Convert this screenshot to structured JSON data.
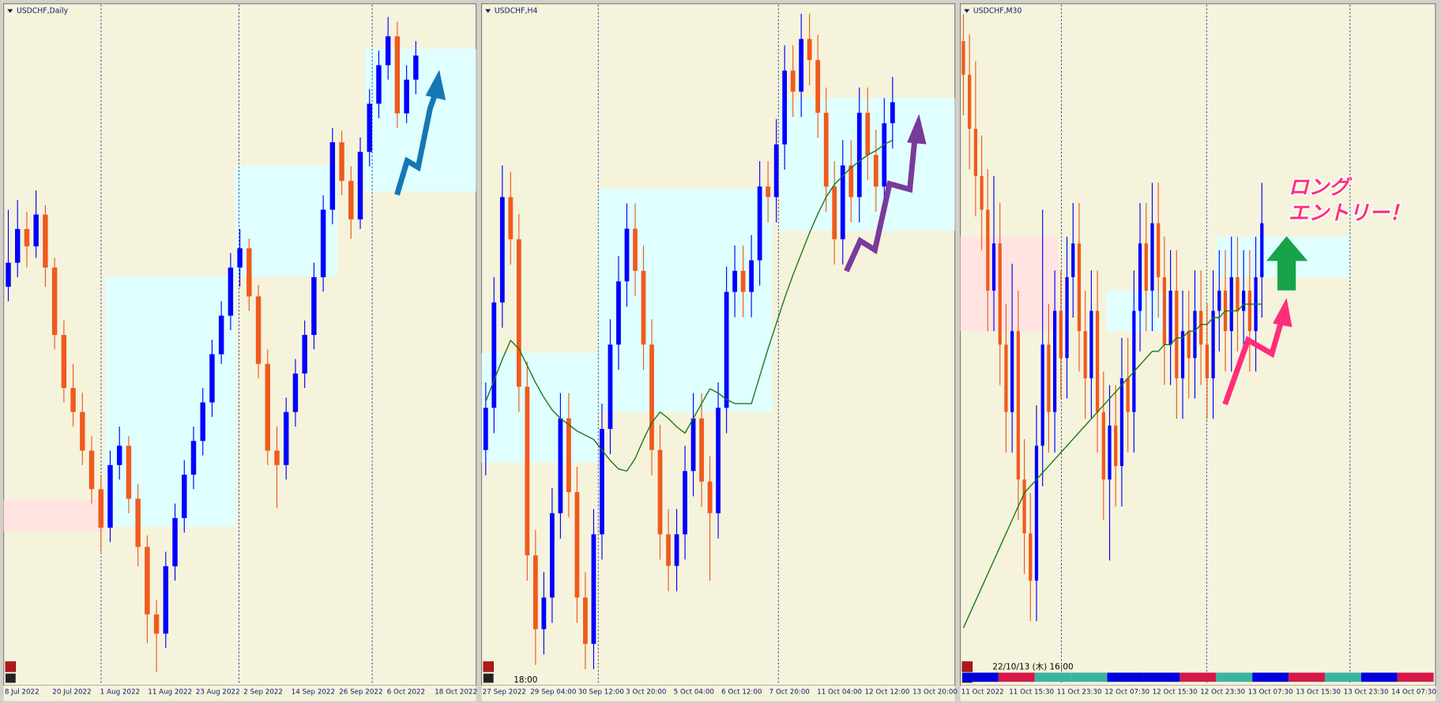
{
  "chart_data": [
    {
      "type": "candlestick",
      "title": "USDCHF,Daily",
      "ylim": [
        0.936,
        1.006
      ],
      "bull_color": "#0000ff",
      "bear_color": "#f05a1e",
      "x_labels": [
        "8 Jul 2022",
        "20 Jul 2022",
        "1 Aug 2022",
        "11 Aug 2022",
        "23 Aug 2022",
        "2 Sep 2022",
        "14 Sep 2022",
        "26 Sep 2022",
        "6 Oct 2022",
        "18 Oct 2022"
      ],
      "ohlc": [
        [
          0.977,
          0.985,
          0.9755,
          0.9795
        ],
        [
          0.9795,
          0.986,
          0.978,
          0.983
        ],
        [
          0.983,
          0.9848,
          0.979,
          0.9812
        ],
        [
          0.9812,
          0.987,
          0.98,
          0.9845
        ],
        [
          0.9845,
          0.9855,
          0.977,
          0.979
        ],
        [
          0.979,
          0.98,
          0.9705,
          0.972
        ],
        [
          0.972,
          0.9735,
          0.965,
          0.9665
        ],
        [
          0.9665,
          0.969,
          0.9625,
          0.964
        ],
        [
          0.964,
          0.966,
          0.9585,
          0.96
        ],
        [
          0.96,
          0.9615,
          0.9545,
          0.956
        ],
        [
          0.956,
          0.9575,
          0.9495,
          0.952
        ],
        [
          0.952,
          0.96,
          0.9505,
          0.9585
        ],
        [
          0.9585,
          0.9625,
          0.957,
          0.9605
        ],
        [
          0.9605,
          0.9615,
          0.9535,
          0.955
        ],
        [
          0.955,
          0.9565,
          0.948,
          0.95
        ],
        [
          0.95,
          0.9512,
          0.94,
          0.943
        ],
        [
          0.943,
          0.9445,
          0.937,
          0.941
        ],
        [
          0.941,
          0.9495,
          0.9395,
          0.948
        ],
        [
          0.948,
          0.9545,
          0.9465,
          0.953
        ],
        [
          0.953,
          0.959,
          0.9515,
          0.9575
        ],
        [
          0.9575,
          0.9625,
          0.956,
          0.961
        ],
        [
          0.961,
          0.9665,
          0.9595,
          0.965
        ],
        [
          0.965,
          0.9715,
          0.9635,
          0.97
        ],
        [
          0.97,
          0.9755,
          0.969,
          0.974
        ],
        [
          0.974,
          0.9805,
          0.9725,
          0.979
        ],
        [
          0.979,
          0.983,
          0.977,
          0.981
        ],
        [
          0.981,
          0.982,
          0.9745,
          0.976
        ],
        [
          0.976,
          0.9772,
          0.9675,
          0.969
        ],
        [
          0.969,
          0.9705,
          0.9585,
          0.96
        ],
        [
          0.96,
          0.9625,
          0.954,
          0.9585
        ],
        [
          0.9585,
          0.9655,
          0.957,
          0.964
        ],
        [
          0.964,
          0.9695,
          0.9625,
          0.968
        ],
        [
          0.968,
          0.9735,
          0.9665,
          0.972
        ],
        [
          0.972,
          0.9795,
          0.9705,
          0.978
        ],
        [
          0.978,
          0.9865,
          0.9765,
          0.985
        ],
        [
          0.985,
          0.9935,
          0.9835,
          0.992
        ],
        [
          0.992,
          0.9932,
          0.9865,
          0.988
        ],
        [
          0.988,
          0.9895,
          0.982,
          0.984
        ],
        [
          0.984,
          0.9925,
          0.983,
          0.991
        ],
        [
          0.991,
          0.9975,
          0.9895,
          0.996
        ],
        [
          0.996,
          1.0015,
          0.9945,
          1.0
        ],
        [
          1.0,
          1.005,
          0.9985,
          1.003
        ],
        [
          1.003,
          1.0045,
          0.9935,
          0.995
        ],
        [
          0.995,
          1.0,
          0.994,
          0.9985
        ],
        [
          0.9985,
          1.0025,
          0.997,
          1.001
        ]
      ],
      "zones": [
        {
          "from": 0,
          "to": 11,
          "top": 0.9549,
          "bottom": 0.9516,
          "color": "#ffe4e1"
        },
        {
          "from": 11,
          "to": 25,
          "top": 0.9781,
          "bottom": 0.9521,
          "color": "#e0ffff"
        },
        {
          "from": 25,
          "to": 36,
          "top": 0.9896,
          "bottom": 0.9781,
          "color": "#e0ffff"
        },
        {
          "from": 39,
          "to": 51,
          "top": 1.0017,
          "bottom": 0.9869,
          "color": "#e0ffff"
        }
      ]
    },
    {
      "type": "candlestick",
      "title": "USDCHF,H4",
      "time_label": "18:00",
      "ylim": [
        0.972,
        1.004
      ],
      "bull_color": "#0000ff",
      "bear_color": "#f05a1e",
      "ma_color": "#1a7a1a",
      "x_labels": [
        "27 Sep 2022",
        "29 Sep 04:00",
        "30 Sep 12:00",
        "3 Oct 20:00",
        "5 Oct 04:00",
        "6 Oct 12:00",
        "7 Oct 20:00",
        "11 Oct 04:00",
        "12 Oct 12:00",
        "13 Oct 20:00"
      ],
      "ohlc": [
        [
          0.983,
          0.9862,
          0.9818,
          0.985
        ],
        [
          0.985,
          0.9912,
          0.9838,
          0.99
        ],
        [
          0.99,
          0.9965,
          0.9888,
          0.995
        ],
        [
          0.995,
          0.9962,
          0.9918,
          0.993
        ],
        [
          0.993,
          0.9942,
          0.9848,
          0.986
        ],
        [
          0.986,
          0.9872,
          0.9768,
          0.978
        ],
        [
          0.978,
          0.9792,
          0.9728,
          0.9745
        ],
        [
          0.9745,
          0.9772,
          0.9733,
          0.976
        ],
        [
          0.976,
          0.9812,
          0.9748,
          0.98
        ],
        [
          0.98,
          0.9857,
          0.9788,
          0.9845
        ],
        [
          0.9845,
          0.9857,
          0.9798,
          0.981
        ],
        [
          0.981,
          0.9822,
          0.9748,
          0.976
        ],
        [
          0.976,
          0.9772,
          0.9726,
          0.9738
        ],
        [
          0.9738,
          0.9802,
          0.9726,
          0.979
        ],
        [
          0.979,
          0.9852,
          0.9778,
          0.984
        ],
        [
          0.984,
          0.9892,
          0.9828,
          0.988
        ],
        [
          0.988,
          0.9922,
          0.9868,
          0.991
        ],
        [
          0.991,
          0.9947,
          0.9898,
          0.9935
        ],
        [
          0.9935,
          0.9947,
          0.9903,
          0.9915
        ],
        [
          0.9915,
          0.9927,
          0.9868,
          0.988
        ],
        [
          0.988,
          0.9892,
          0.9818,
          0.983
        ],
        [
          0.983,
          0.9842,
          0.9778,
          0.979
        ],
        [
          0.979,
          0.9802,
          0.9763,
          0.9775
        ],
        [
          0.9775,
          0.9802,
          0.9763,
          0.979
        ],
        [
          0.979,
          0.9832,
          0.9778,
          0.982
        ],
        [
          0.982,
          0.9857,
          0.9808,
          0.9845
        ],
        [
          0.9845,
          0.9857,
          0.9803,
          0.9815
        ],
        [
          0.9815,
          0.9827,
          0.9768,
          0.98
        ],
        [
          0.98,
          0.9862,
          0.9788,
          0.985
        ],
        [
          0.985,
          0.9917,
          0.9838,
          0.9905
        ],
        [
          0.9905,
          0.9927,
          0.9893,
          0.9915
        ],
        [
          0.9915,
          0.9927,
          0.9893,
          0.9905
        ],
        [
          0.9905,
          0.9932,
          0.9893,
          0.992
        ],
        [
          0.992,
          0.9967,
          0.9908,
          0.9955
        ],
        [
          0.9955,
          0.9967,
          0.9938,
          0.995
        ],
        [
          0.995,
          0.9987,
          0.9938,
          0.9975
        ],
        [
          0.9975,
          1.0022,
          0.9963,
          1.001
        ],
        [
          1.001,
          1.0022,
          0.9988,
          1.0
        ],
        [
          1.0,
          1.0037,
          0.9988,
          1.0025
        ],
        [
          1.0025,
          1.0037,
          1.0003,
          1.0015
        ],
        [
          1.0015,
          1.0027,
          0.9978,
          0.999
        ],
        [
          0.999,
          1.0002,
          0.9943,
          0.9955
        ],
        [
          0.9955,
          0.9967,
          0.9918,
          0.993
        ],
        [
          0.993,
          0.9977,
          0.9918,
          0.9965
        ],
        [
          0.9965,
          0.9977,
          0.9938,
          0.995
        ],
        [
          0.995,
          1.0002,
          0.9938,
          0.999
        ],
        [
          0.999,
          1.0002,
          0.9958,
          0.997
        ],
        [
          0.997,
          0.9982,
          0.9943,
          0.9955
        ],
        [
          0.9955,
          0.9997,
          0.9943,
          0.9985
        ],
        [
          0.9985,
          1.0007,
          0.9973,
          0.9995
        ]
      ],
      "ma": [
        0.9853,
        0.9863,
        0.9873,
        0.9882,
        0.9878,
        0.987,
        0.9862,
        0.9855,
        0.9849,
        0.9845,
        0.9842,
        0.9839,
        0.9837,
        0.9835,
        0.983,
        0.9825,
        0.9821,
        0.982,
        0.9826,
        0.9835,
        0.9843,
        0.9848,
        0.9845,
        0.9841,
        0.9838,
        0.9845,
        0.9852,
        0.9859,
        0.9857,
        0.9854,
        0.9852,
        0.9852,
        0.9852,
        0.9865,
        0.9878,
        0.989,
        0.9902,
        0.9913,
        0.9923,
        0.9933,
        0.9942,
        0.995,
        0.9956,
        0.996,
        0.9964,
        0.9967,
        0.997,
        0.9972,
        0.9975,
        0.9977
      ],
      "zones": [
        {
          "from": 0,
          "to": 14,
          "top": 0.9876,
          "bottom": 0.9824,
          "color": "#e0ffff"
        },
        {
          "from": 14,
          "to": 35,
          "top": 0.9954,
          "bottom": 0.9848,
          "color": "#e0ffff"
        },
        {
          "from": 36,
          "to": 57,
          "top": 0.9997,
          "bottom": 0.9934,
          "color": "#e0ffff"
        }
      ]
    },
    {
      "type": "candlestick",
      "title": "USDCHF,M30",
      "time_label": "22/10/13 (木) 16:00",
      "annotation": [
        "ロング",
        "エントリー！"
      ],
      "ylim": [
        0.992,
        1.002
      ],
      "bull_color": "#0000ff",
      "bear_color": "#f05a1e",
      "ma_color": "#1a7a1a",
      "x_labels": [
        "11 Oct 2022",
        "11 Oct 15:30",
        "11 Oct 23:30",
        "12 Oct 07:30",
        "12 Oct 15:30",
        "12 Oct 23:30",
        "13 Oct 07:30",
        "13 Oct 15:30",
        "13 Oct 23:30",
        "14 Oct 07:30"
      ],
      "ohlc": [
        [
          1.0015,
          1.0019,
          1.0004,
          1.001
        ],
        [
          1.001,
          1.0016,
          0.9996,
          1.0002
        ],
        [
          1.0002,
          1.0012,
          0.9989,
          0.9995
        ],
        [
          0.9995,
          1.0001,
          0.9984,
          0.999
        ],
        [
          0.999,
          0.9996,
          0.9972,
          0.9978
        ],
        [
          0.9978,
          0.9995,
          0.9972,
          0.9985
        ],
        [
          0.9985,
          0.9991,
          0.9964,
          0.997
        ],
        [
          0.997,
          0.9976,
          0.9954,
          0.996
        ],
        [
          0.996,
          0.9982,
          0.9954,
          0.9972
        ],
        [
          0.9972,
          0.9978,
          0.9944,
          0.995
        ],
        [
          0.995,
          0.9956,
          0.9936,
          0.9942
        ],
        [
          0.9942,
          0.9948,
          0.9929,
          0.9935
        ],
        [
          0.9935,
          0.9961,
          0.9929,
          0.9955
        ],
        [
          0.9955,
          0.999,
          0.9949,
          0.997
        ],
        [
          0.997,
          0.9976,
          0.9954,
          0.996
        ],
        [
          0.996,
          0.9981,
          0.9954,
          0.9975
        ],
        [
          0.9975,
          0.9981,
          0.9962,
          0.9968
        ],
        [
          0.9968,
          0.9986,
          0.9962,
          0.998
        ],
        [
          0.998,
          0.9991,
          0.9974,
          0.9985
        ],
        [
          0.9985,
          0.9991,
          0.9966,
          0.9972
        ],
        [
          0.9972,
          0.9978,
          0.9959,
          0.9965
        ],
        [
          0.9965,
          0.9981,
          0.9959,
          0.9975
        ],
        [
          0.9975,
          0.9981,
          0.9954,
          0.996
        ],
        [
          0.996,
          0.9966,
          0.9944,
          0.995
        ],
        [
          0.995,
          0.9964,
          0.9938,
          0.9958
        ],
        [
          0.9958,
          0.9964,
          0.9946,
          0.9952
        ],
        [
          0.9952,
          0.9971,
          0.9946,
          0.9965
        ],
        [
          0.9965,
          0.9971,
          0.9954,
          0.996
        ],
        [
          0.996,
          0.9981,
          0.9954,
          0.9975
        ],
        [
          0.9975,
          0.9991,
          0.9969,
          0.9985
        ],
        [
          0.9985,
          0.9991,
          0.9972,
          0.9978
        ],
        [
          0.9978,
          0.9994,
          0.9972,
          0.9988
        ],
        [
          0.9988,
          0.9994,
          0.9974,
          0.998
        ],
        [
          0.998,
          0.9986,
          0.9964,
          0.997
        ],
        [
          0.997,
          0.9984,
          0.9964,
          0.9978
        ],
        [
          0.9978,
          0.9984,
          0.9959,
          0.9965
        ],
        [
          0.9965,
          0.9978,
          0.9959,
          0.9972
        ],
        [
          0.9972,
          0.9978,
          0.9962,
          0.9968
        ],
        [
          0.9968,
          0.9981,
          0.9962,
          0.9975
        ],
        [
          0.9975,
          0.9981,
          0.9964,
          0.997
        ],
        [
          0.997,
          0.9976,
          0.9959,
          0.9965
        ],
        [
          0.9965,
          0.9981,
          0.9959,
          0.9975
        ],
        [
          0.9975,
          0.9984,
          0.9969,
          0.9978
        ],
        [
          0.9978,
          0.9984,
          0.9966,
          0.9972
        ],
        [
          0.9972,
          0.9986,
          0.9966,
          0.998
        ],
        [
          0.998,
          0.9986,
          0.9969,
          0.9975
        ],
        [
          0.9975,
          0.9984,
          0.9969,
          0.9978
        ],
        [
          0.9978,
          0.9984,
          0.9966,
          0.9972
        ],
        [
          0.9972,
          0.9986,
          0.9966,
          0.998
        ],
        [
          0.998,
          0.9994,
          0.9974,
          0.9988
        ]
      ],
      "ma": [
        0.9928,
        0.993,
        0.9932,
        0.9934,
        0.9936,
        0.9938,
        0.994,
        0.9942,
        0.9944,
        0.9946,
        0.9948,
        0.9949,
        0.995,
        0.9951,
        0.9952,
        0.9953,
        0.9954,
        0.9955,
        0.9956,
        0.9957,
        0.9958,
        0.9959,
        0.996,
        0.9961,
        0.9962,
        0.9963,
        0.9964,
        0.9965,
        0.9966,
        0.9967,
        0.9968,
        0.9969,
        0.9969,
        0.997,
        0.997,
        0.9971,
        0.9971,
        0.9972,
        0.9972,
        0.9973,
        0.9973,
        0.9974,
        0.9974,
        0.9975,
        0.9975,
        0.9975,
        0.9976,
        0.9976,
        0.9976,
        0.9976
      ],
      "zones": [
        {
          "from": 0,
          "to": 16,
          "top": 0.9986,
          "bottom": 0.9972,
          "color": "#ffe4e1"
        },
        {
          "from": 24,
          "to": 34,
          "top": 0.9978,
          "bottom": 0.9972,
          "color": "#e0ffff"
        },
        {
          "from": 42,
          "to": 64,
          "top": 0.9986,
          "bottom": 0.998,
          "color": "#e0ffff"
        }
      ]
    }
  ]
}
